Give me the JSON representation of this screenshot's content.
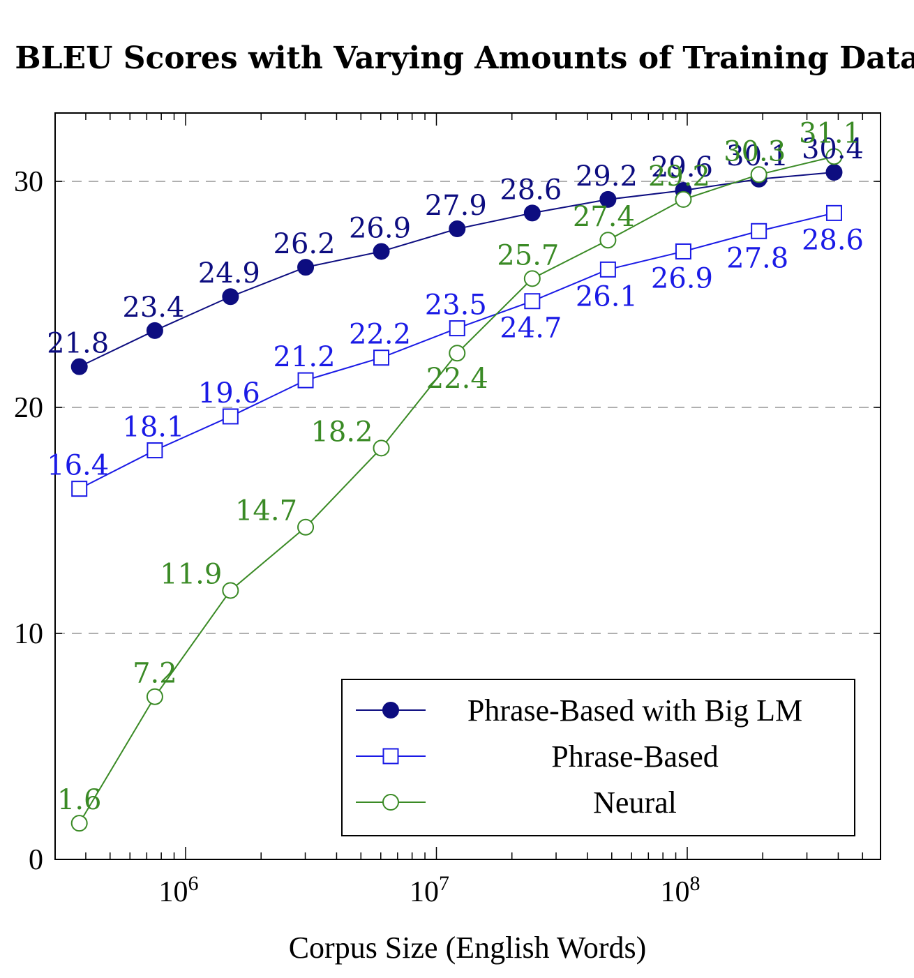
{
  "chart_data": {
    "type": "line",
    "title": "BLEU Scores with Varying Amounts of Training Data",
    "xlabel": "Corpus Size (English Words)",
    "ylabel": "",
    "x_scale": "log",
    "x_ticks": [
      {
        "value": 1000000,
        "base": "10",
        "exp": "6"
      },
      {
        "value": 10000000,
        "base": "10",
        "exp": "7"
      },
      {
        "value": 100000000,
        "base": "10",
        "exp": "8"
      }
    ],
    "y_ticks": [
      0,
      10,
      20,
      30
    ],
    "ylim": [
      0,
      33
    ],
    "y_grid": true,
    "legend_position": "bottom-right",
    "x": [
      377000,
      754000,
      1510000,
      3010000,
      6030000,
      12100000,
      24100000,
      48300000,
      96500000,
      193000000,
      385000000
    ],
    "series": [
      {
        "name": "Phrase-Based with Big LM",
        "color": "#0d0d80",
        "marker": "filled-circle",
        "values": [
          21.8,
          23.4,
          24.9,
          26.2,
          26.9,
          27.9,
          28.6,
          29.2,
          29.6,
          30.1,
          30.4
        ],
        "labels": [
          "21.8",
          "23.4",
          "24.9",
          "26.2",
          "26.9",
          "27.9",
          "28.6",
          "29.2",
          "29.6",
          "30.1",
          "30.4"
        ]
      },
      {
        "name": "Phrase-Based",
        "color": "#1a1ae6",
        "marker": "open-square",
        "values": [
          16.4,
          18.1,
          19.6,
          21.2,
          22.2,
          23.5,
          24.7,
          26.1,
          26.9,
          27.8,
          28.6
        ],
        "labels": [
          "16.4",
          "18.1",
          "19.6",
          "21.2",
          "22.2",
          "23.5",
          "24.7",
          "26.1",
          "26.9",
          "27.8",
          "28.6"
        ]
      },
      {
        "name": "Neural",
        "color": "#3a8a25",
        "marker": "open-circle",
        "values": [
          1.6,
          7.2,
          11.9,
          14.7,
          18.2,
          22.4,
          25.7,
          27.4,
          29.2,
          30.3,
          31.1
        ],
        "labels": [
          "1.6",
          "7.2",
          "11.9",
          "14.7",
          "18.2",
          "22.4",
          "25.7",
          "27.4",
          "29.2",
          "30.3",
          "31.1"
        ]
      }
    ]
  }
}
